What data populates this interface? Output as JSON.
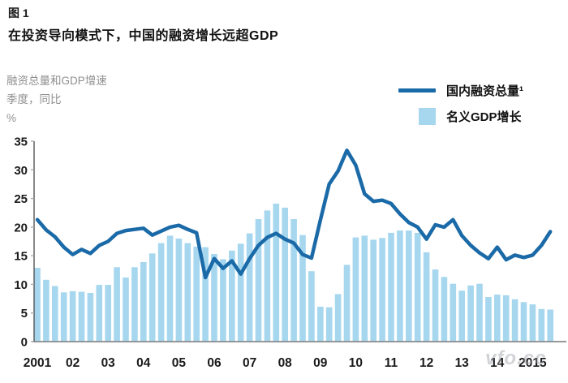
{
  "figure_label": "图 1",
  "title": "在投资导向模式下，中国的融资增长远超GDP",
  "y_caption": {
    "line1": "融资总量和GDP增速",
    "line2": "季度，同比",
    "line3": "%"
  },
  "legend": {
    "items": [
      {
        "label": "国内融资总量¹",
        "swatch": "line"
      },
      {
        "label": "名义GDP增长",
        "swatch": "square"
      }
    ]
  },
  "watermark": "vfo.cc",
  "colors": {
    "line_series": "#1b6aa8",
    "bar_series": "#a6d7ee",
    "axis_y": "#555555",
    "axis_x": "#8a8a8a",
    "tick_text": "#1a1a1a",
    "muted_text": "#8f8f8f"
  },
  "chart_data": {
    "type": "bar",
    "note": "combo chart: quarterly bars (nominal GDP YoY %) with overlaid line (domestic total financing YoY %), 2001Q1-2015Q3",
    "title": "在投资导向模式下，中国的融资增长远超GDP",
    "ylabel": "融资总量和GDP增速，季度，同比，%",
    "xlabel": "",
    "ylim": [
      0,
      35
    ],
    "y_ticks": [
      0,
      5,
      10,
      15,
      20,
      25,
      30,
      35
    ],
    "x_labels": [
      "2001",
      "02",
      "03",
      "04",
      "05",
      "06",
      "07",
      "08",
      "09",
      "10",
      "11",
      "12",
      "13",
      "14",
      "2015"
    ],
    "x_start": "2001Q1",
    "frequency": "quarterly",
    "grid": false,
    "legend_position": "top-right",
    "series": [
      {
        "name": "国内融资总量¹",
        "kind": "line",
        "color": "#1b6aa8",
        "values": [
          21.3,
          19.5,
          18.3,
          16.5,
          15.2,
          16.1,
          15.4,
          16.8,
          17.5,
          18.9,
          19.4,
          19.6,
          19.8,
          18.6,
          19.3,
          20.0,
          20.3,
          19.6,
          19.0,
          11.2,
          14.5,
          12.8,
          14.1,
          11.8,
          14.5,
          16.8,
          18.2,
          18.9,
          17.9,
          17.2,
          15.2,
          14.6,
          21.2,
          27.5,
          29.8,
          33.4,
          30.8,
          25.8,
          24.5,
          24.7,
          24.1,
          22.3,
          20.8,
          20.0,
          17.9,
          20.4,
          20.0,
          21.3,
          18.5,
          16.8,
          15.5,
          14.5,
          16.5,
          14.3,
          15.1,
          14.7,
          15.1,
          16.8,
          19.2
        ]
      },
      {
        "name": "名义GDP增长",
        "kind": "bar",
        "color": "#a6d7ee",
        "values": [
          12.9,
          10.8,
          9.7,
          8.6,
          8.8,
          8.7,
          8.5,
          9.9,
          9.9,
          13.0,
          11.2,
          13.0,
          13.9,
          15.4,
          17.2,
          18.5,
          18.0,
          17.2,
          16.6,
          16.5,
          15.3,
          14.4,
          15.9,
          17.1,
          18.9,
          21.4,
          22.9,
          24.1,
          23.4,
          21.4,
          18.6,
          12.3,
          6.1,
          6.0,
          8.3,
          13.4,
          18.2,
          18.5,
          17.8,
          18.1,
          19.0,
          19.4,
          19.4,
          19.0,
          15.6,
          12.6,
          11.3,
          10.1,
          8.9,
          9.8,
          10.1,
          7.8,
          8.2,
          8.1,
          7.4,
          6.9,
          6.5,
          5.7,
          5.6
        ]
      }
    ]
  }
}
